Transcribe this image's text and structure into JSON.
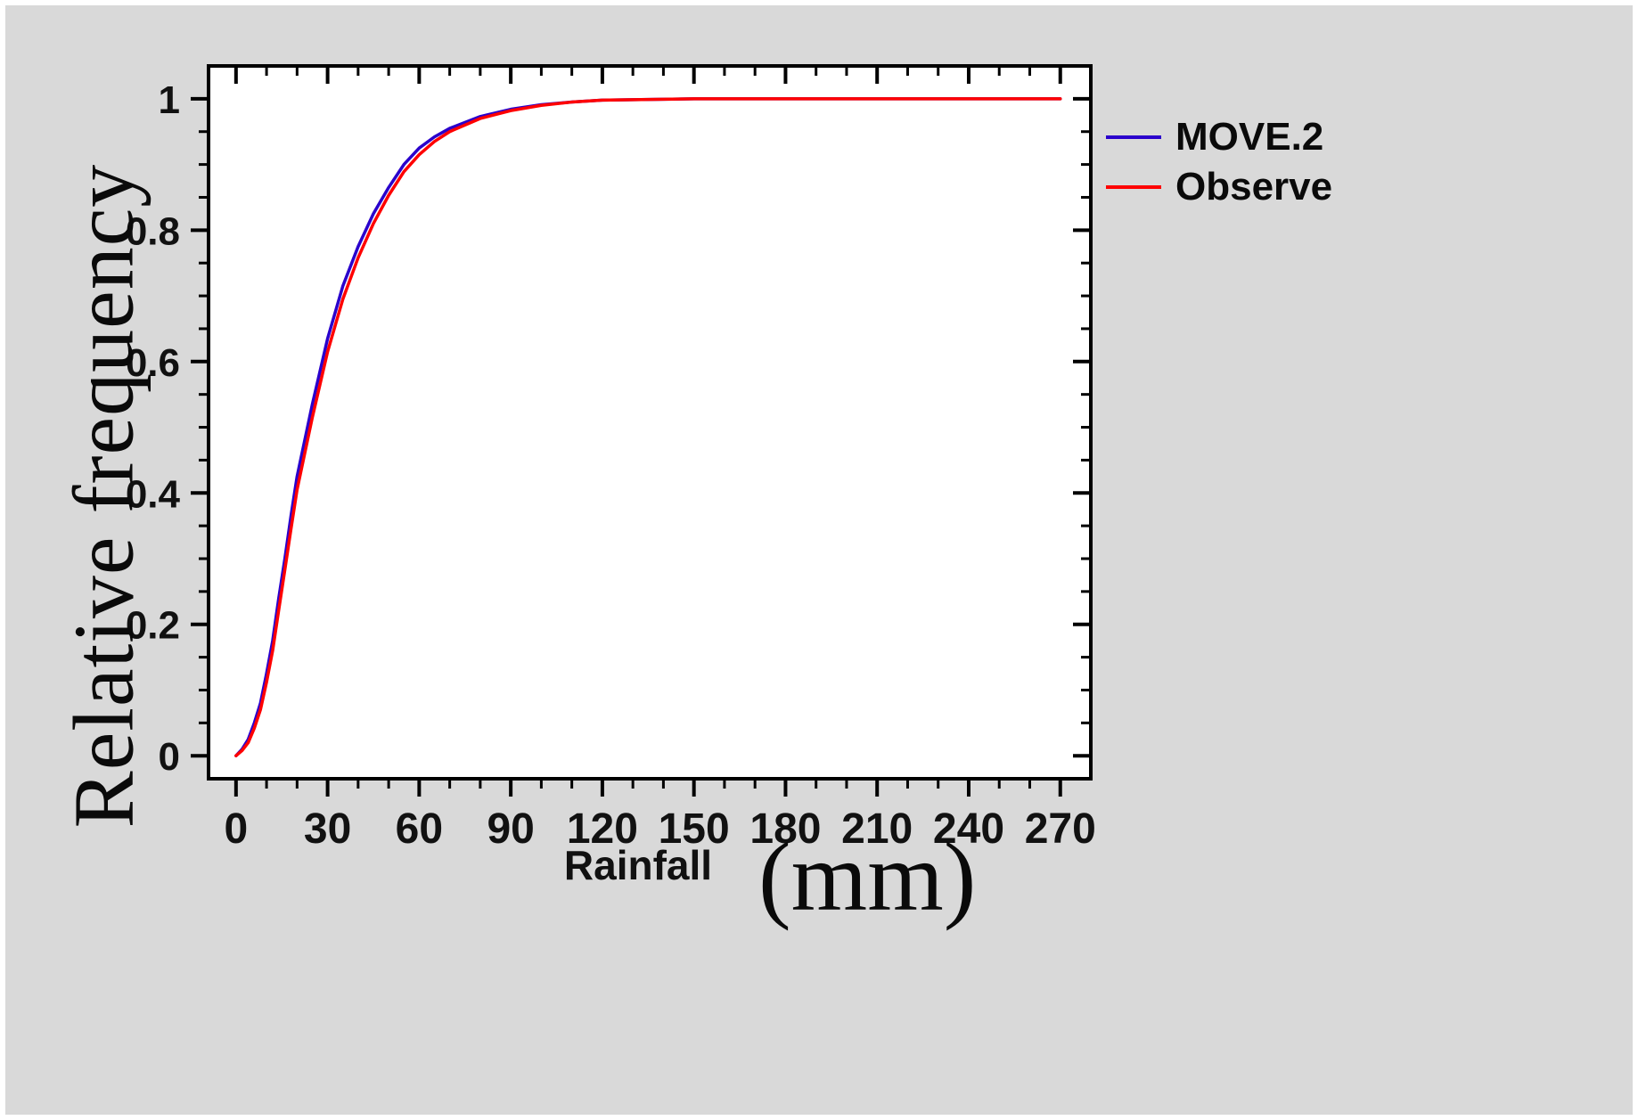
{
  "chart_data": {
    "type": "line",
    "title": "",
    "ylabel": "Relative frequency",
    "xlabel_primary": "Rainfall",
    "xlabel_unit": "(mm)",
    "xlim": [
      0,
      270
    ],
    "ylim": [
      0,
      1
    ],
    "x_range": [
      -9,
      280
    ],
    "y_range": [
      -0.035,
      1.05
    ],
    "x_ticks": [
      0,
      30,
      60,
      90,
      120,
      150,
      180,
      210,
      240,
      270
    ],
    "y_ticks": [
      0,
      0.2,
      0.4,
      0.6,
      0.8,
      1
    ],
    "x_minor_step": 10,
    "y_minor_step": 0.05,
    "grid": false,
    "legend_position": "top-right",
    "background_color": "#d9d9d9",
    "plot_background_color": "#ffffff",
    "frame_color": "#000000",
    "x": [
      0,
      2,
      4,
      6,
      8,
      10,
      12,
      14,
      16,
      18,
      20,
      25,
      30,
      35,
      40,
      45,
      50,
      55,
      60,
      65,
      70,
      80,
      90,
      100,
      110,
      120,
      150,
      200,
      270
    ],
    "series": [
      {
        "name": "MOVE.2",
        "color": "#2a00cc",
        "values": [
          0,
          0.01,
          0.025,
          0.05,
          0.08,
          0.125,
          0.175,
          0.24,
          0.3,
          0.365,
          0.425,
          0.535,
          0.635,
          0.715,
          0.775,
          0.825,
          0.865,
          0.9,
          0.925,
          0.942,
          0.955,
          0.973,
          0.984,
          0.991,
          0.995,
          0.998,
          1.0,
          1.0,
          1.0
        ]
      },
      {
        "name": "Observe",
        "color": "#ff0000",
        "values": [
          0,
          0.008,
          0.02,
          0.042,
          0.07,
          0.112,
          0.16,
          0.222,
          0.283,
          0.345,
          0.405,
          0.515,
          0.615,
          0.695,
          0.758,
          0.81,
          0.853,
          0.889,
          0.915,
          0.935,
          0.95,
          0.97,
          0.982,
          0.99,
          0.995,
          0.998,
          1.0,
          1.0,
          1.0
        ]
      }
    ]
  }
}
